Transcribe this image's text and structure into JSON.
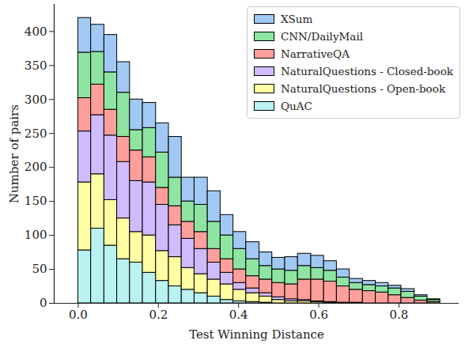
{
  "chart_data": {
    "type": "histogram",
    "stacked": true,
    "x_label": "Test Winning Distance",
    "y_label": "Number of pairs",
    "bins": [
      0,
      0.032,
      0.065,
      0.097,
      0.129,
      0.161,
      0.194,
      0.226,
      0.258,
      0.29,
      0.323,
      0.355,
      0.387,
      0.419,
      0.452,
      0.484,
      0.516,
      0.548,
      0.581,
      0.613,
      0.645,
      0.677,
      0.71,
      0.742,
      0.774,
      0.806,
      0.839,
      0.871,
      0.903
    ],
    "series": [
      {
        "name": "XSum",
        "color": "#a1c9f4",
        "values": [
          51,
          40,
          55,
          45,
          45,
          37,
          43,
          60,
          35,
          40,
          45,
          30,
          25,
          25,
          20,
          17,
          20,
          18,
          18,
          14,
          12,
          6,
          6,
          5,
          4,
          4,
          2,
          1
        ]
      },
      {
        "name": "CNN/DailyMail",
        "color": "#8de5a1",
        "values": [
          67,
          48,
          55,
          65,
          30,
          43,
          52,
          42,
          30,
          40,
          40,
          35,
          30,
          25,
          20,
          20,
          20,
          20,
          17,
          16,
          13,
          10,
          9,
          9,
          10,
          9,
          6,
          3
        ]
      },
      {
        "name": "NarrativeQA",
        "color": "#ff9f9b",
        "values": [
          49,
          45,
          38,
          37,
          45,
          37,
          25,
          28,
          25,
          25,
          20,
          20,
          20,
          18,
          20,
          21,
          22,
          30,
          32,
          30,
          24,
          19,
          18,
          16,
          12,
          8,
          4,
          2
        ]
      },
      {
        "name": "NaturalQuestions - Closed-book",
        "color": "#d0bbff",
        "values": [
          75,
          87,
          95,
          83,
          75,
          78,
          68,
          47,
          43,
          37,
          25,
          17,
          10,
          7,
          5,
          4,
          3,
          2,
          1,
          1,
          0,
          1,
          0,
          0,
          0,
          0,
          0,
          0
        ]
      },
      {
        "name": "NaturalQuestions - Open-book",
        "color": "#fffea3",
        "values": [
          100,
          80,
          67,
          60,
          45,
          55,
          44,
          43,
          32,
          28,
          25,
          23,
          17,
          13,
          9,
          5,
          3,
          3,
          2,
          1,
          1,
          0,
          0,
          0,
          0,
          0,
          0,
          0
        ]
      },
      {
        "name": "QuAC",
        "color": "#b9f2f0",
        "values": [
          78,
          110,
          85,
          65,
          60,
          45,
          33,
          25,
          20,
          15,
          10,
          5,
          3,
          2,
          1,
          0,
          0,
          0,
          0,
          0,
          0,
          0,
          0,
          0,
          0,
          0,
          0,
          0
        ]
      }
    ],
    "xlim": [
      -0.06,
      0.95
    ],
    "xticks": [
      {
        "value": 0,
        "label": "0.0"
      },
      0.2,
      0.4,
      0.6,
      0.8
    ],
    "ylim": [
      0,
      440
    ],
    "yticks": [
      0,
      50,
      100,
      150,
      200,
      250,
      300,
      350,
      400
    ],
    "legend": "upper right"
  }
}
